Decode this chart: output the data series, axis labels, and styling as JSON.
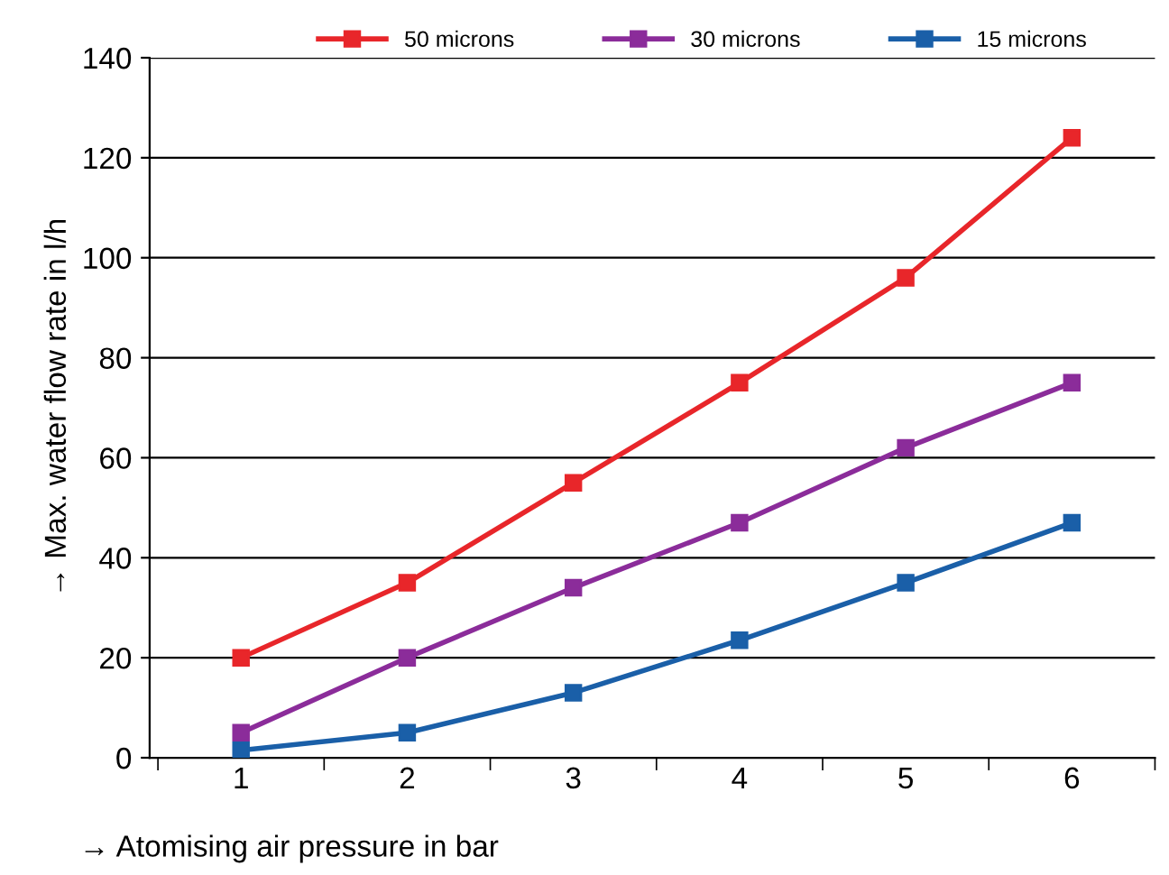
{
  "chart_data": {
    "type": "line",
    "xlabel": "→ Atomising air pressure in bar",
    "ylabel": "→ Max. water flow rate in l/h",
    "categories": [
      "1",
      "2",
      "3",
      "4",
      "5",
      "6"
    ],
    "series": [
      {
        "name": "50 microns",
        "color": "#e8262a",
        "values": [
          20,
          35,
          55,
          75,
          96,
          124
        ]
      },
      {
        "name": "30 microns",
        "color": "#8b2c9a",
        "values": [
          5,
          20,
          34,
          47,
          62,
          75
        ]
      },
      {
        "name": "15 microns",
        "color": "#1a5fa8",
        "values": [
          1.5,
          5,
          13,
          23.5,
          35,
          47
        ]
      }
    ],
    "ylim": [
      0,
      140
    ],
    "yticks": [
      0,
      20,
      40,
      60,
      80,
      100,
      120,
      140
    ],
    "grid": "y",
    "legend": "top",
    "marker": "square",
    "line_style": "solid"
  }
}
